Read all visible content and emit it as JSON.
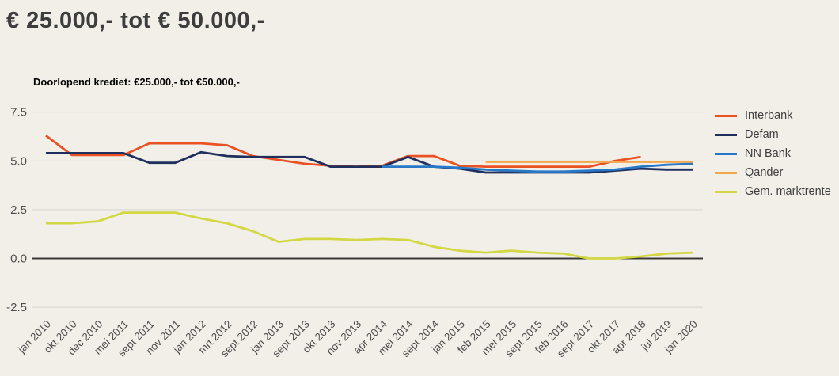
{
  "page_title": "€ 25.000,- tot € 50.000,-",
  "chart_data": {
    "type": "line",
    "title": "Doorlopend krediet: €25.000,- tot €50.000,-",
    "legend_position": "right",
    "grid": true,
    "x_label_rotation": 45,
    "ylim": [
      -2.5,
      7.5
    ],
    "y_ticks": [
      7.5,
      5,
      2.5,
      0,
      -2.5
    ],
    "categories": [
      "jan 2010",
      "okt 2010",
      "dec 2010",
      "mei 2011",
      "sept 2011",
      "nov 2011",
      "jan 2012",
      "mrt 2012",
      "sept 2012",
      "jan 2013",
      "sept 2013",
      "okt 2013",
      "nov 2013",
      "apr 2014",
      "mei 2014",
      "sept 2014",
      "jan 2015",
      "feb 2015",
      "mei 2015",
      "sept 2015",
      "feb 2016",
      "sept 2017",
      "okt 2017",
      "apr 2018",
      "jul 2019",
      "jan 2020"
    ],
    "series": [
      {
        "name": "Interbank",
        "color": "#ea5123",
        "values": [
          6.3,
          5.3,
          5.3,
          5.3,
          5.9,
          5.9,
          5.9,
          5.8,
          5.25,
          5.05,
          4.85,
          4.75,
          4.7,
          4.75,
          5.25,
          5.25,
          4.75,
          4.7,
          4.7,
          4.7,
          4.7,
          4.7,
          5.0,
          5.2,
          null,
          null
        ]
      },
      {
        "name": "Defam",
        "color": "#20305e",
        "values": [
          5.4,
          5.4,
          5.4,
          5.4,
          4.9,
          4.9,
          5.45,
          5.25,
          5.2,
          5.2,
          5.2,
          4.7,
          4.7,
          4.7,
          5.2,
          4.7,
          4.6,
          4.4,
          4.4,
          4.4,
          4.4,
          4.4,
          4.5,
          4.6,
          4.55,
          4.55
        ]
      },
      {
        "name": "NN Bank",
        "color": "#2878c8",
        "values": [
          null,
          null,
          null,
          null,
          null,
          null,
          null,
          null,
          null,
          null,
          null,
          null,
          null,
          4.7,
          4.7,
          4.7,
          4.65,
          4.55,
          4.5,
          4.45,
          4.45,
          4.5,
          4.55,
          4.7,
          4.8,
          4.85
        ]
      },
      {
        "name": "Qander",
        "color": "#f5a74b",
        "values": [
          null,
          null,
          null,
          null,
          null,
          null,
          null,
          null,
          null,
          null,
          null,
          null,
          null,
          null,
          null,
          null,
          null,
          4.95,
          4.95,
          4.95,
          4.95,
          4.95,
          4.95,
          4.95,
          4.95,
          4.95
        ]
      },
      {
        "name": "Gem. marktrente",
        "color": "#d2d743",
        "values": [
          1.8,
          1.8,
          1.9,
          2.35,
          2.35,
          2.35,
          2.05,
          1.8,
          1.4,
          0.85,
          1.0,
          1.0,
          0.95,
          1.0,
          0.95,
          0.6,
          0.4,
          0.3,
          0.4,
          0.3,
          0.25,
          0.0,
          0.0,
          0.1,
          0.25,
          0.3
        ]
      }
    ]
  }
}
